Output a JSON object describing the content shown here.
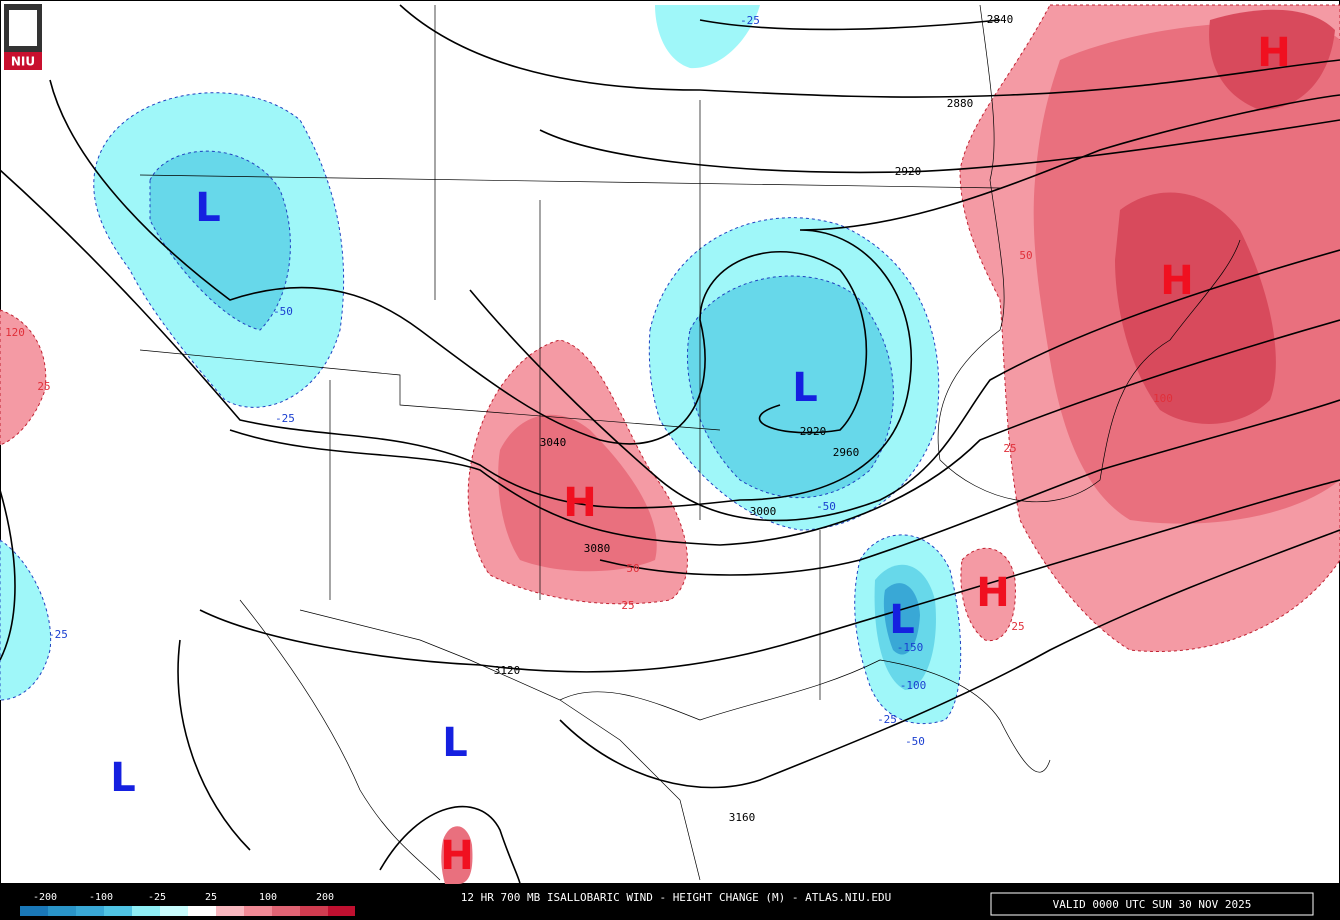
{
  "logo": "NIU",
  "title": "12 HR 700 MB ISALLOBARIC WIND - HEIGHT CHANGE (M) - ATLAS.NIU.EDU",
  "valid": "VALID 0000 UTC SUN 30 NOV 2025",
  "legend": {
    "labels": [
      "-200",
      "-100",
      "-25",
      "25",
      "100",
      "200"
    ]
  },
  "height_labels": [
    "2840",
    "2880",
    "2920",
    "3040",
    "3080",
    "3000",
    "2920",
    "2960",
    "3120",
    "3160"
  ],
  "change_labels": [
    "-25",
    "-50",
    "-25",
    "-25",
    "-50",
    "-150",
    "-100",
    "-25",
    "-50",
    "120",
    "25",
    "50",
    "25",
    "100",
    "50",
    "25",
    "25"
  ],
  "centers": [
    "L",
    "L",
    "L",
    "L",
    "L",
    "H",
    "H",
    "H",
    "H",
    "H"
  ]
}
